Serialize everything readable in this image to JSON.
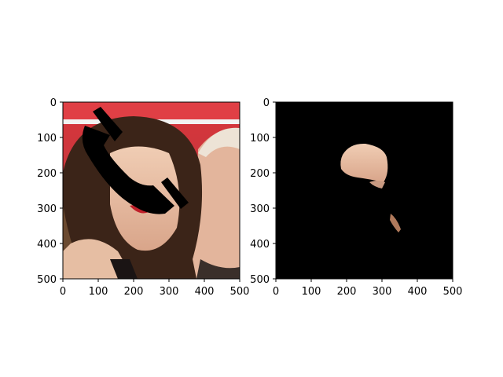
{
  "chart_data": [
    {
      "type": "image",
      "description_key": "left",
      "xlim": [
        0,
        500
      ],
      "ylim": [
        500,
        0
      ],
      "xticks": [
        "0",
        "100",
        "200",
        "300",
        "400",
        "500"
      ],
      "yticks": [
        "0",
        "100",
        "200",
        "300",
        "400",
        "500"
      ],
      "image": "photo of two people with a black phone-handset shaped occlusion mask over the woman's face"
    },
    {
      "type": "image",
      "description_key": "right",
      "xlim": [
        0,
        500
      ],
      "ylim": [
        500,
        0
      ],
      "xticks": [
        "0",
        "100",
        "200",
        "300",
        "400",
        "500"
      ],
      "yticks": [
        "0",
        "100",
        "200",
        "300",
        "400",
        "500"
      ],
      "image": "black background showing only a small segmented skin region of the face"
    }
  ],
  "colors": {
    "mask": "#000000",
    "skin": "#e8c2a8",
    "banner_red": "#d63a3f",
    "hair": "#3b2418"
  }
}
